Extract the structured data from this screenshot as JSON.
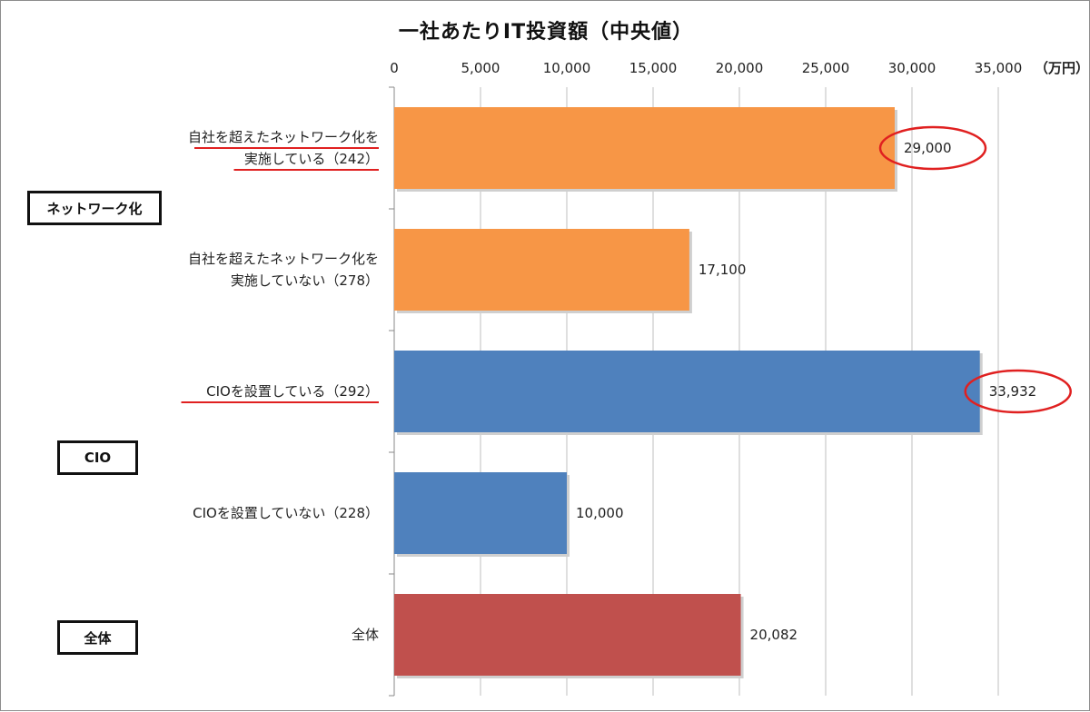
{
  "chart_data": {
    "type": "bar",
    "orientation": "horizontal",
    "title": "一社あたりIT投資額（中央値）",
    "unit": "（万円）",
    "xlim": [
      0,
      35000
    ],
    "xticks": [
      "0",
      "5,000",
      "10,000",
      "15,000",
      "20,000",
      "25,000",
      "30,000",
      "35,000"
    ],
    "grid": true,
    "bars": [
      {
        "label_lines": [
          "自社を超えたネットワーク化を",
          "実施している（242）"
        ],
        "value": 29000,
        "value_label": "29,000",
        "color": "#f79646",
        "highlighted": true
      },
      {
        "label_lines": [
          "自社を超えたネットワーク化を",
          "実施していない（278）"
        ],
        "value": 17100,
        "value_label": "17,100",
        "color": "#f79646",
        "highlighted": false
      },
      {
        "label_lines": [
          "CIOを設置している（292）"
        ],
        "value": 33932,
        "value_label": "33,932",
        "color": "#4f81bd",
        "highlighted": true
      },
      {
        "label_lines": [
          "CIOを設置していない（228）"
        ],
        "value": 10000,
        "value_label": "10,000",
        "color": "#4f81bd",
        "highlighted": false
      },
      {
        "label_lines": [
          "全体"
        ],
        "value": 20082,
        "value_label": "20,082",
        "color": "#c0504d",
        "highlighted": false
      }
    ],
    "groups": [
      {
        "label": "ネットワーク化"
      },
      {
        "label": "CIO"
      },
      {
        "label": "全体"
      }
    ],
    "highlight_color": "#e02020"
  }
}
